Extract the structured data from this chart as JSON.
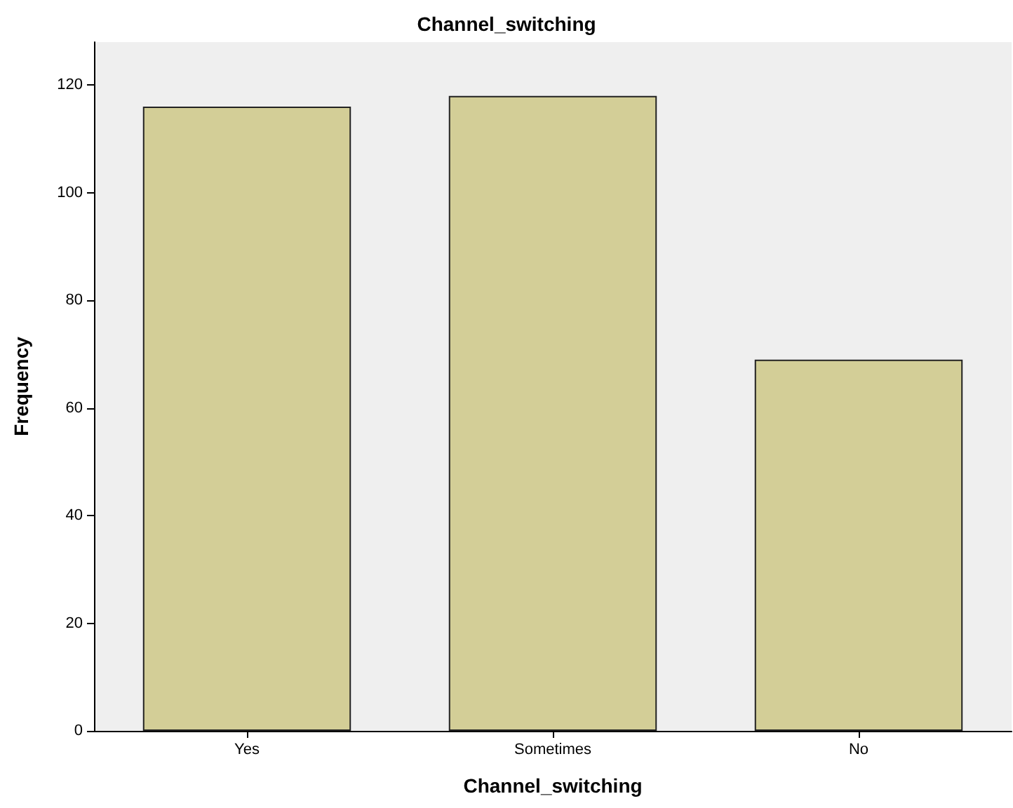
{
  "chart_data": {
    "type": "bar",
    "title": "Channel_switching",
    "xlabel": "Channel_switching",
    "ylabel": "Frequency",
    "categories": [
      "Yes",
      "Sometimes",
      "No"
    ],
    "values": [
      116,
      118,
      69
    ],
    "color": "#d3ce97",
    "ylim": [
      0,
      128
    ],
    "yticks": [
      0,
      20,
      40,
      60,
      80,
      100,
      120
    ],
    "grid": false
  }
}
